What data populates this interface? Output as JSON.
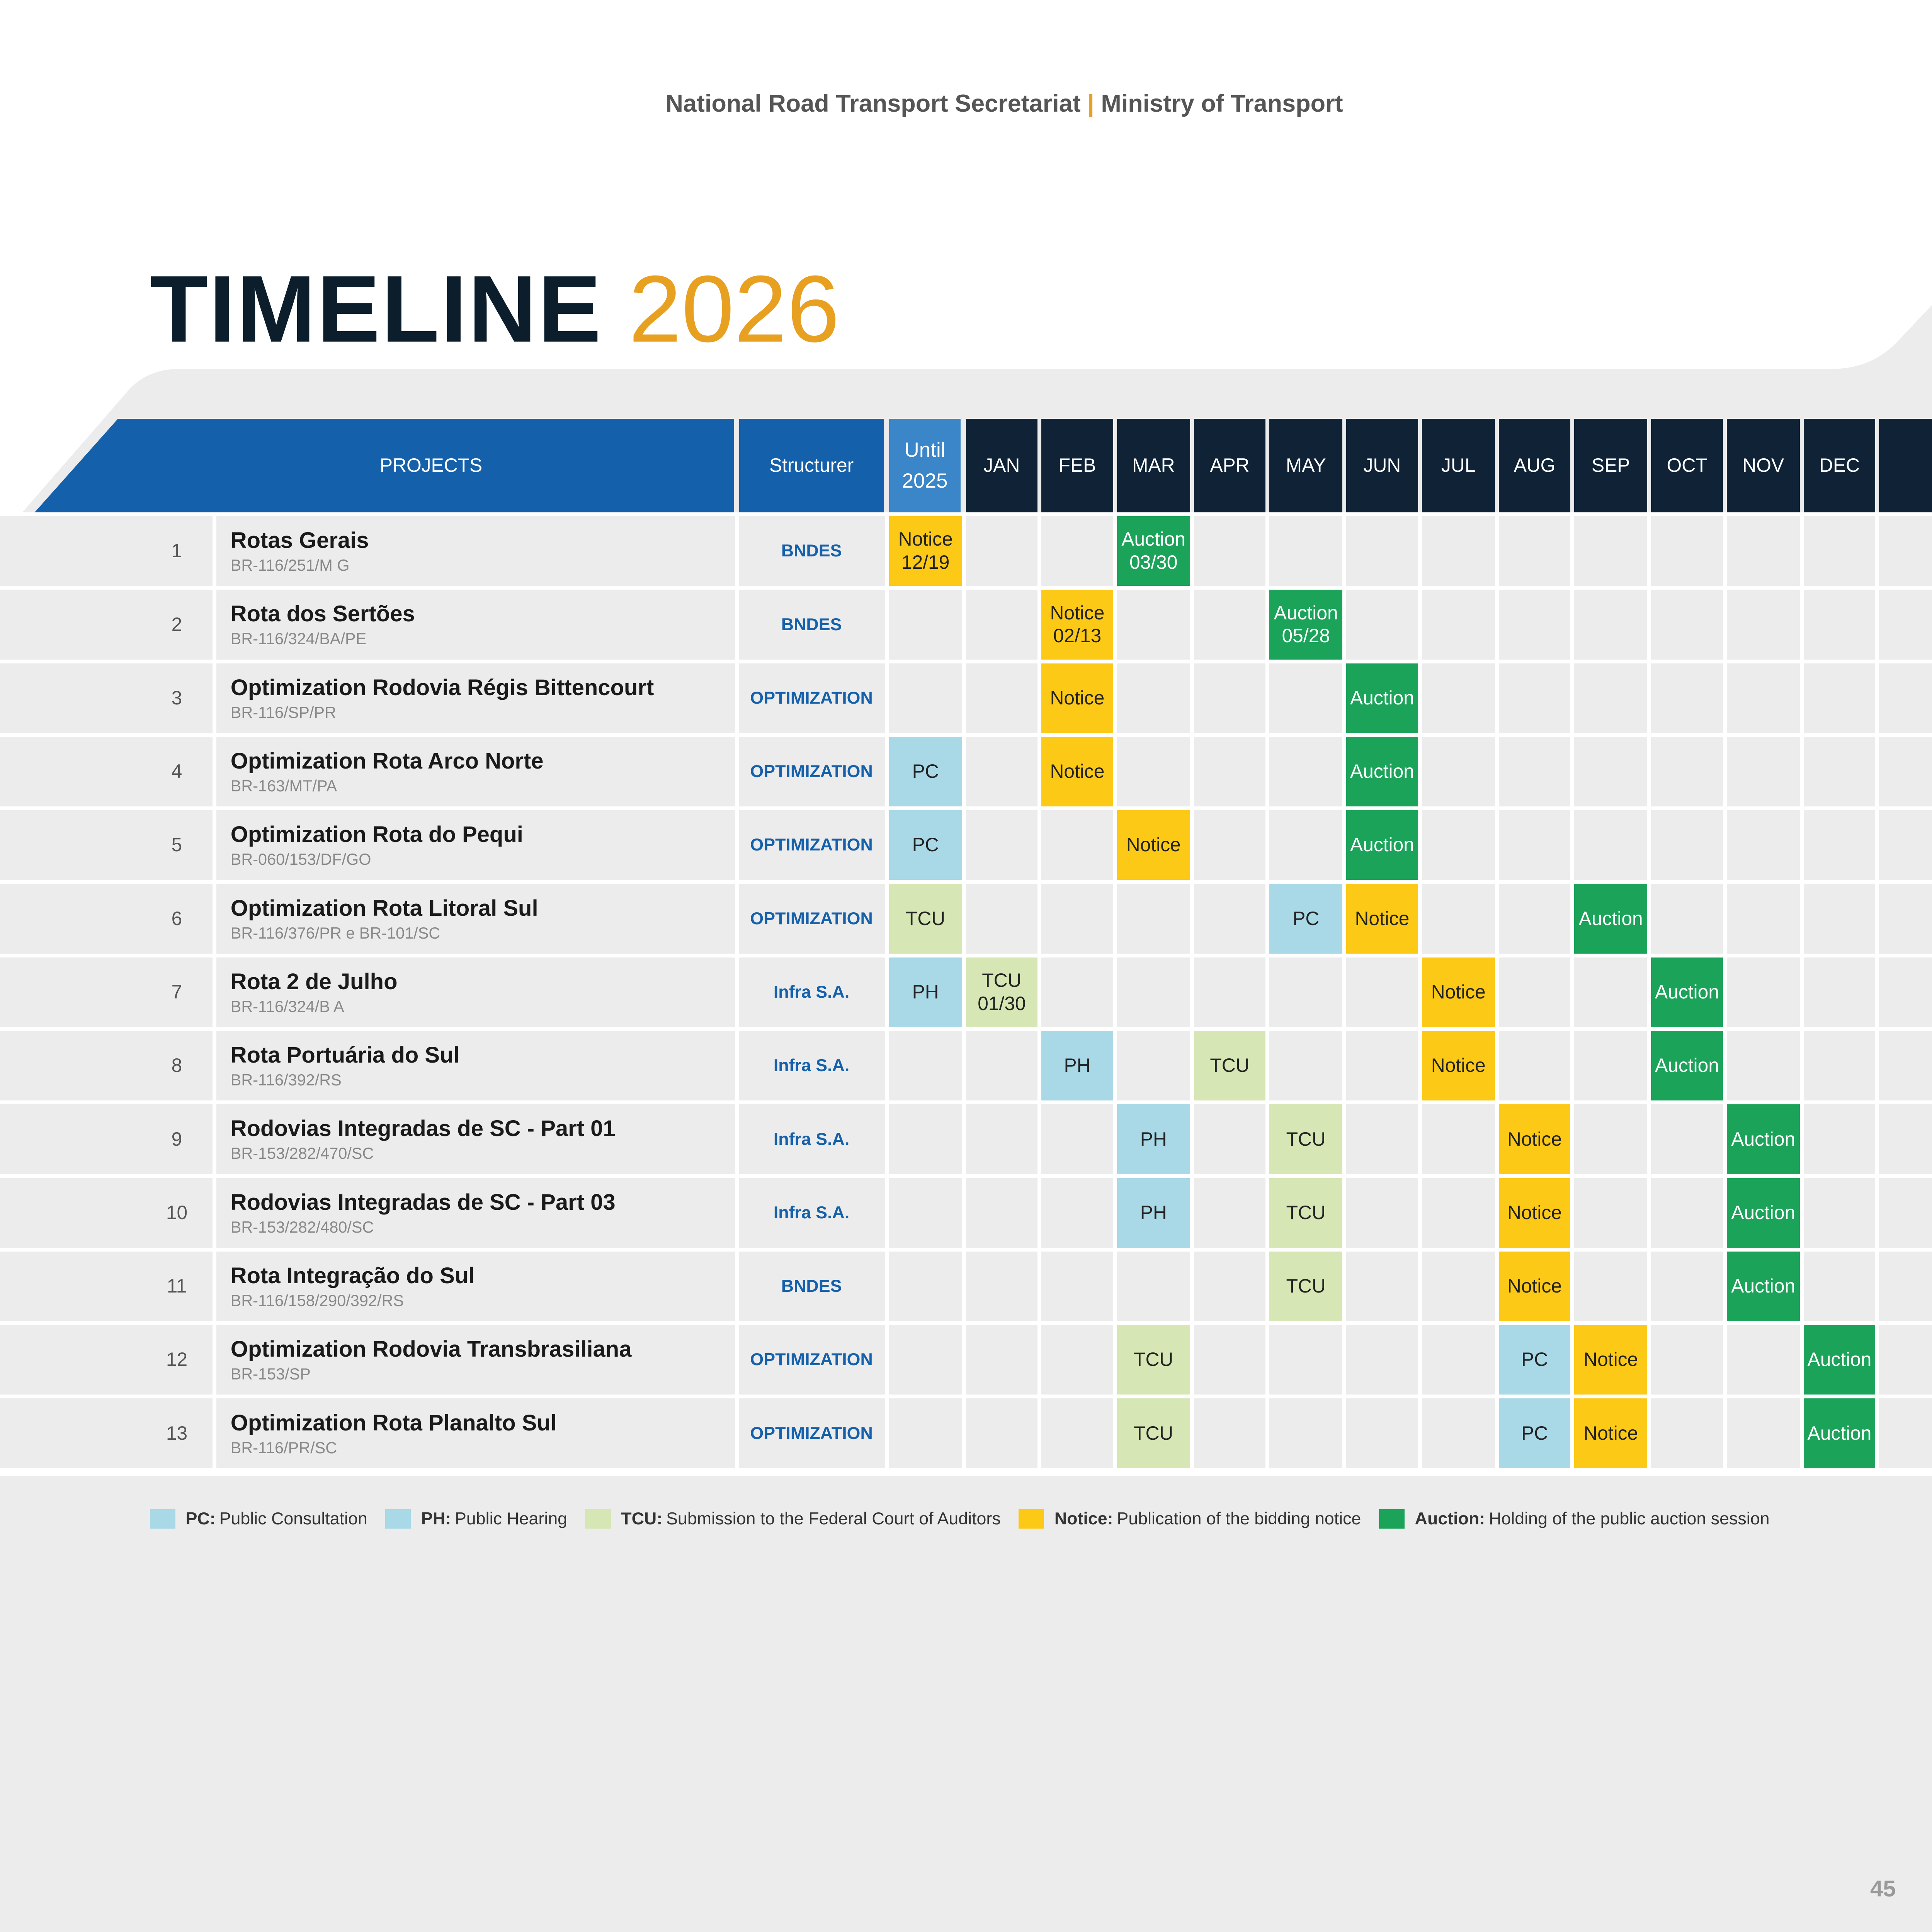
{
  "header": {
    "org_left": "National Road Transport Secretariat",
    "separator": "|",
    "org_right": "Ministry of Transport"
  },
  "title": {
    "word": "TIMELINE",
    "year": "2026"
  },
  "colors": {
    "header_blue": "#1560ab",
    "until_blue": "#3a86c8",
    "month_dark": "#0f2236",
    "pc": "#a9d8e7",
    "ph": "#a9d8e7",
    "tcu": "#d6e6b4",
    "notice": "#fdc917",
    "auction": "#1ba35a",
    "accent": "#e8a020"
  },
  "table": {
    "headers": {
      "projects": "PROJECTS",
      "structurer": "Structurer",
      "until_line1": "Until",
      "until_line2": "2025"
    },
    "columns": [
      "Until 2025",
      "JAN",
      "FEB",
      "MAR",
      "APR",
      "MAY",
      "JUN",
      "JUL",
      "AUG",
      "SEP",
      "OCT",
      "NOV",
      "DEC"
    ],
    "months": [
      "JAN",
      "FEB",
      "MAR",
      "APR",
      "MAY",
      "JUN",
      "JUL",
      "AUG",
      "SEP",
      "OCT",
      "NOV",
      "DEC"
    ],
    "rows": [
      {
        "num": "1",
        "name": "Rotas Gerais",
        "code": "BR-116/251/M G",
        "structurer": "BNDES",
        "events": [
          {
            "col": "Until 2025",
            "type": "notice",
            "label": "Notice",
            "date": "12/19"
          },
          {
            "col": "MAR",
            "type": "auction",
            "label": "Auction",
            "date": "03/30"
          }
        ]
      },
      {
        "num": "2",
        "name": "Rota dos Sertões",
        "code": "BR-116/324/BA/PE",
        "structurer": "BNDES",
        "events": [
          {
            "col": "FEB",
            "type": "notice",
            "label": "Notice",
            "date": "02/13"
          },
          {
            "col": "MAY",
            "type": "auction",
            "label": "Auction",
            "date": "05/28"
          }
        ]
      },
      {
        "num": "3",
        "name": "Optimization Rodovia Régis Bittencourt",
        "code": "BR-116/SP/PR",
        "structurer": "OPTIMIZATION",
        "events": [
          {
            "col": "FEB",
            "type": "notice",
            "label": "Notice"
          },
          {
            "col": "JUN",
            "type": "auction",
            "label": "Auction"
          }
        ]
      },
      {
        "num": "4",
        "name": "Optimization Rota Arco Norte",
        "code": "BR-163/MT/PA",
        "structurer": "OPTIMIZATION",
        "events": [
          {
            "col": "Until 2025",
            "type": "pc",
            "label": "PC"
          },
          {
            "col": "FEB",
            "type": "notice",
            "label": "Notice"
          },
          {
            "col": "JUN",
            "type": "auction",
            "label": "Auction"
          }
        ]
      },
      {
        "num": "5",
        "name": "Optimization Rota do Pequi",
        "code": "BR-060/153/DF/GO",
        "structurer": "OPTIMIZATION",
        "events": [
          {
            "col": "Until 2025",
            "type": "pc",
            "label": "PC"
          },
          {
            "col": "MAR",
            "type": "notice",
            "label": "Notice"
          },
          {
            "col": "JUN",
            "type": "auction",
            "label": "Auction"
          }
        ]
      },
      {
        "num": "6",
        "name": "Optimization Rota Litoral Sul",
        "code": "BR-116/376/PR e BR-101/SC",
        "structurer": "OPTIMIZATION",
        "events": [
          {
            "col": "Until 2025",
            "type": "tcu",
            "label": "TCU"
          },
          {
            "col": "MAY",
            "type": "pc",
            "label": "PC"
          },
          {
            "col": "JUN",
            "type": "notice",
            "label": "Notice"
          },
          {
            "col": "SEP",
            "type": "auction",
            "label": "Auction"
          }
        ]
      },
      {
        "num": "7",
        "name": "Rota 2 de Julho",
        "code": "BR-116/324/B A",
        "structurer": "Infra S.A.",
        "events": [
          {
            "col": "Until 2025",
            "type": "ph",
            "label": "PH"
          },
          {
            "col": "JAN",
            "type": "tcu",
            "label": "TCU",
            "date": "01/30"
          },
          {
            "col": "JUL",
            "type": "notice",
            "label": "Notice"
          },
          {
            "col": "OCT",
            "type": "auction",
            "label": "Auction"
          }
        ]
      },
      {
        "num": "8",
        "name": "Rota Portuária do Sul",
        "code": "BR-116/392/RS",
        "structurer": "Infra S.A.",
        "events": [
          {
            "col": "FEB",
            "type": "ph",
            "label": "PH"
          },
          {
            "col": "APR",
            "type": "tcu",
            "label": "TCU"
          },
          {
            "col": "JUL",
            "type": "notice",
            "label": "Notice"
          },
          {
            "col": "OCT",
            "type": "auction",
            "label": "Auction"
          }
        ]
      },
      {
        "num": "9",
        "name": "Rodovias Integradas de SC - Part 01",
        "code": "BR-153/282/470/SC",
        "structurer": "Infra S.A.",
        "events": [
          {
            "col": "MAR",
            "type": "ph",
            "label": "PH"
          },
          {
            "col": "MAY",
            "type": "tcu",
            "label": "TCU"
          },
          {
            "col": "AUG",
            "type": "notice",
            "label": "Notice"
          },
          {
            "col": "NOV",
            "type": "auction",
            "label": "Auction"
          }
        ]
      },
      {
        "num": "10",
        "name": "Rodovias Integradas de SC - Part 03",
        "code": "BR-153/282/480/SC",
        "structurer": "Infra S.A.",
        "events": [
          {
            "col": "MAR",
            "type": "ph",
            "label": "PH"
          },
          {
            "col": "MAY",
            "type": "tcu",
            "label": "TCU"
          },
          {
            "col": "AUG",
            "type": "notice",
            "label": "Notice"
          },
          {
            "col": "NOV",
            "type": "auction",
            "label": "Auction"
          }
        ]
      },
      {
        "num": "11",
        "name": "Rota Integração do Sul",
        "code": "BR-116/158/290/392/RS",
        "structurer": "BNDES",
        "events": [
          {
            "col": "MAY",
            "type": "tcu",
            "label": "TCU"
          },
          {
            "col": "AUG",
            "type": "notice",
            "label": "Notice"
          },
          {
            "col": "NOV",
            "type": "auction",
            "label": "Auction"
          }
        ]
      },
      {
        "num": "12",
        "name": "Optimization Rodovia Transbrasiliana",
        "code": "BR-153/SP",
        "structurer": "OPTIMIZATION",
        "events": [
          {
            "col": "MAR",
            "type": "tcu",
            "label": "TCU"
          },
          {
            "col": "AUG",
            "type": "pc",
            "label": "PC"
          },
          {
            "col": "SEP",
            "type": "notice",
            "label": "Notice"
          },
          {
            "col": "DEC",
            "type": "auction",
            "label": "Auction"
          }
        ]
      },
      {
        "num": "13",
        "name": "Optimization Rota Planalto Sul",
        "code": "BR-116/PR/SC",
        "structurer": "OPTIMIZATION",
        "events": [
          {
            "col": "MAR",
            "type": "tcu",
            "label": "TCU"
          },
          {
            "col": "AUG",
            "type": "pc",
            "label": "PC"
          },
          {
            "col": "SEP",
            "type": "notice",
            "label": "Notice"
          },
          {
            "col": "DEC",
            "type": "auction",
            "label": "Auction"
          }
        ]
      }
    ]
  },
  "legend": [
    {
      "type": "pc",
      "key": "PC:",
      "text": "Public Consultation"
    },
    {
      "type": "ph",
      "key": "PH:",
      "text": "Public Hearing"
    },
    {
      "type": "tcu",
      "key": "TCU:",
      "text": "Submission to the Federal Court of Auditors"
    },
    {
      "type": "notice",
      "key": "Notice:",
      "text": "Publication of the bidding notice"
    },
    {
      "type": "auction",
      "key": "Auction:",
      "text": "Holding of the public auction session"
    }
  ],
  "page_number": "45"
}
